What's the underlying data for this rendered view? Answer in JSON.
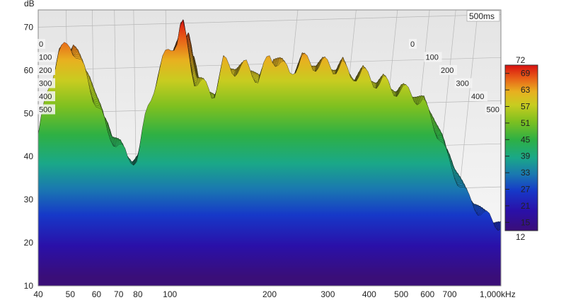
{
  "chart_data": {
    "type": "area",
    "subtype": "waterfall-3d",
    "title": "",
    "ylabel": "dB",
    "xlabel": "",
    "time_depth_label": "500ms",
    "x_scale": "log",
    "xlim": [
      40,
      1000
    ],
    "ylim": [
      10,
      74
    ],
    "x_ticks": [
      {
        "value": 40,
        "label": "40"
      },
      {
        "value": 50,
        "label": "50"
      },
      {
        "value": 60,
        "label": "60"
      },
      {
        "value": 70,
        "label": "70"
      },
      {
        "value": 80,
        "label": "80"
      },
      {
        "value": 100,
        "label": "100"
      },
      {
        "value": 200,
        "label": "200"
      },
      {
        "value": 300,
        "label": "300"
      },
      {
        "value": 400,
        "label": "400"
      },
      {
        "value": 500,
        "label": "500"
      },
      {
        "value": 600,
        "label": "600"
      },
      {
        "value": 700,
        "label": "700"
      },
      {
        "value": 1000,
        "label": "1,000kHz"
      }
    ],
    "y_ticks": [
      {
        "value": 10,
        "label": "10"
      },
      {
        "value": 20,
        "label": "20"
      },
      {
        "value": 30,
        "label": "30"
      },
      {
        "value": 40,
        "label": "40"
      },
      {
        "value": 50,
        "label": "50"
      },
      {
        "value": 60,
        "label": "60"
      },
      {
        "value": 70,
        "label": "70"
      }
    ],
    "time_ticks": [
      "0",
      "100",
      "200",
      "300",
      "400",
      "500"
    ],
    "colorbar": {
      "min": 12,
      "max": 72,
      "min_label": "12",
      "max_label": "72",
      "ticks": [
        "69",
        "63",
        "57",
        "51",
        "45",
        "39",
        "33",
        "27",
        "21",
        "15"
      ]
    },
    "grid": true,
    "front_slice_db": {
      "freq_hz": [
        40,
        43,
        46,
        48,
        50,
        52,
        55,
        58,
        62,
        65,
        70,
        75,
        80,
        85,
        90,
        95,
        100,
        105,
        108,
        110,
        113,
        118,
        125,
        135,
        145,
        155,
        170,
        185,
        200,
        215,
        230,
        250,
        270,
        290,
        310,
        330,
        350,
        380,
        410,
        440,
        470,
        500,
        540,
        580,
        620,
        660,
        700,
        750,
        800,
        850,
        900,
        950,
        1000
      ],
      "level_db": [
        45,
        56,
        64,
        65,
        66,
        64,
        60,
        55,
        50,
        45,
        43,
        39,
        40,
        50,
        57,
        62,
        65,
        67,
        71,
        70,
        65,
        58,
        57,
        54,
        62,
        60,
        61,
        58,
        63,
        62,
        59,
        63,
        61,
        62,
        60,
        62,
        58,
        60,
        57,
        58,
        55,
        56,
        54,
        53,
        48,
        44,
        38,
        34,
        30,
        28,
        26,
        25,
        24
      ]
    }
  }
}
